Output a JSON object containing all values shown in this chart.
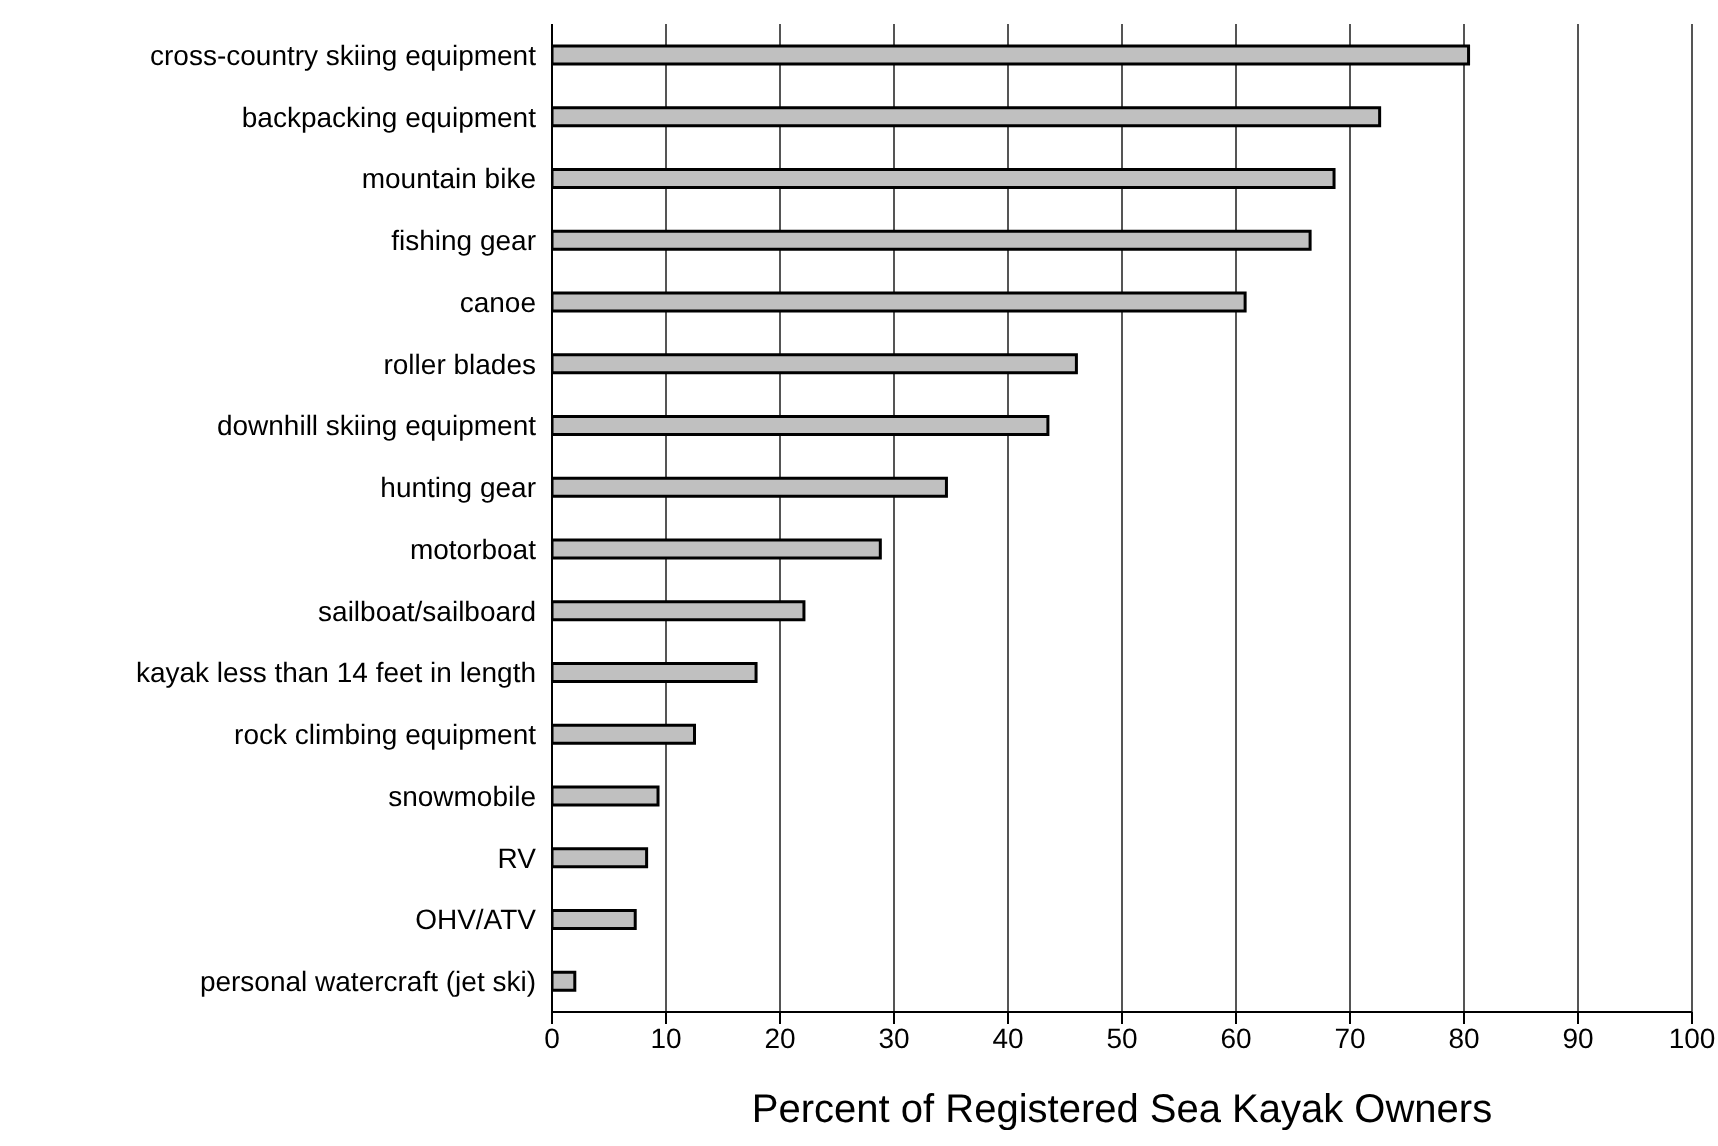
{
  "chart_data": {
    "type": "bar",
    "orientation": "horizontal",
    "xlabel": "Percent of Registered Sea Kayak Owners",
    "categories": [
      "cross-country skiing equipment",
      "backpacking equipment",
      "mountain bike",
      "fishing gear",
      "canoe",
      "roller blades",
      "downhill skiing equipment",
      "hunting gear",
      "motorboat",
      "sailboat/sailboard",
      "kayak less than 14 feet in length",
      "rock climbing equipment",
      "snowmobile",
      "RV",
      "OHV/ATV",
      "personal watercraft (jet ski)"
    ],
    "values": [
      80.4,
      72.6,
      68.6,
      66.5,
      60.8,
      46,
      43.5,
      34.6,
      28.8,
      22.1,
      17.9,
      12.5,
      9.3,
      8.3,
      7.3,
      2.0
    ],
    "color": "#c0c0c0",
    "xlim": [
      0,
      100
    ],
    "xticks": [
      0,
      10,
      20,
      30,
      40,
      50,
      60,
      70,
      80,
      90,
      100
    ],
    "grid": "x"
  }
}
